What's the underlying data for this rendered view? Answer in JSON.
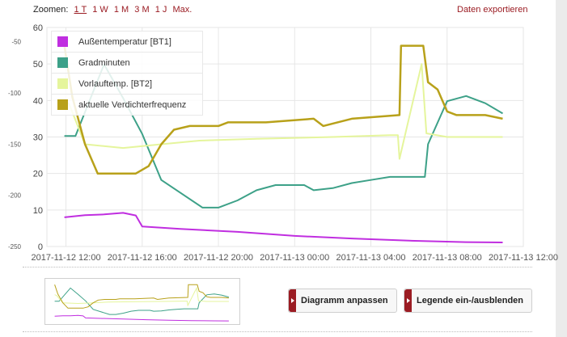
{
  "toolbar": {
    "zoom_label": "Zoomen:",
    "zoom_options": [
      "1 T",
      "1 W",
      "1 M",
      "3 M",
      "1 J",
      "Max."
    ],
    "export_label": "Daten exportieren"
  },
  "buttons": {
    "fit": "Diagramm anpassen",
    "legend_toggle": "Legende ein-/ausblenden"
  },
  "chart_data": {
    "type": "line",
    "x_tick_labels": [
      "2017-11-12 12:00",
      "2017-11-12 16:00",
      "2017-11-12 20:00",
      "2017-11-13 00:00",
      "2017-11-13 04:00",
      "2017-11-13 08:00",
      "2017-11-13 12:00"
    ],
    "y_left_ticks": [
      0,
      10,
      20,
      30,
      40,
      50,
      60
    ],
    "y_right_ticks": [
      -50,
      -100,
      -150,
      -200,
      -250
    ],
    "ylim_left": [
      0,
      60
    ],
    "ylim_right": [
      -250,
      -36
    ],
    "grid": true,
    "legend_position": "top-left",
    "series": [
      {
        "name": "Außentemperatur [BT1]",
        "color": "#c02ee0",
        "axis": "left",
        "x": [
          "2017-11-12 11:55",
          "2017-11-12 13:00",
          "2017-11-12 14:00",
          "2017-11-12 15:00",
          "2017-11-12 15:40",
          "2017-11-12 16:00",
          "2017-11-12 18:00",
          "2017-11-12 21:00",
          "2017-11-13 00:00",
          "2017-11-13 03:00",
          "2017-11-13 06:00",
          "2017-11-13 09:00",
          "2017-11-13 10:55"
        ],
        "y": [
          8.0,
          8.6,
          8.8,
          9.2,
          8.5,
          5.5,
          4.8,
          4.0,
          2.9,
          2.2,
          1.6,
          1.2,
          1.1
        ]
      },
      {
        "name": "Gradminuten",
        "color": "#3da188",
        "axis": "right",
        "x": [
          "2017-11-12 11:55",
          "2017-11-12 12:30",
          "2017-11-12 14:00",
          "2017-11-12 15:00",
          "2017-11-12 16:00",
          "2017-11-12 17:00",
          "2017-11-12 19:10",
          "2017-11-12 20:00",
          "2017-11-12 21:00",
          "2017-11-12 22:00",
          "2017-11-12 23:00",
          "2017-11-13 00:30",
          "2017-11-13 01:00",
          "2017-11-13 02:00",
          "2017-11-13 03:00",
          "2017-11-13 04:00",
          "2017-11-13 05:00",
          "2017-11-13 06:50",
          "2017-11-13 07:00",
          "2017-11-13 08:00",
          "2017-11-13 09:00",
          "2017-11-13 10:00",
          "2017-11-13 10:55"
        ],
        "y": [
          -142,
          -142,
          -72,
          -105,
          -140,
          -185,
          -212,
          -212,
          -205,
          -195,
          -190,
          -190,
          -195,
          -193,
          -188,
          -185,
          -182,
          -182,
          -150,
          -108,
          -103,
          -110,
          -120
        ]
      },
      {
        "name": "Vorlauftemp. [BT2]",
        "color": "#e5f59c",
        "axis": "left",
        "x": [
          "2017-11-12 11:55",
          "2017-11-12 12:10",
          "2017-11-12 13:00",
          "2017-11-12 15:00",
          "2017-11-12 17:00",
          "2017-11-12 19:00",
          "2017-11-12 22:00",
          "2017-11-13 02:00",
          "2017-11-13 05:00",
          "2017-11-13 05:25",
          "2017-11-13 05:30",
          "2017-11-13 06:40",
          "2017-11-13 06:55",
          "2017-11-13 08:00",
          "2017-11-13 10:55"
        ],
        "y": [
          40,
          39,
          28,
          27,
          28,
          29,
          29.5,
          30,
          30.5,
          30.5,
          24,
          50,
          31,
          30,
          30
        ]
      },
      {
        "name": "aktuelle Verdichterfrequenz",
        "color": "#b8a11a",
        "axis": "left",
        "x": [
          "2017-11-12 11:55",
          "2017-11-12 12:20",
          "2017-11-12 13:00",
          "2017-11-12 13:40",
          "2017-11-12 15:40",
          "2017-11-12 16:20",
          "2017-11-12 17:00",
          "2017-11-12 17:40",
          "2017-11-12 18:30",
          "2017-11-12 20:00",
          "2017-11-12 20:30",
          "2017-11-12 22:30",
          "2017-11-13 01:00",
          "2017-11-13 01:30",
          "2017-11-13 03:00",
          "2017-11-13 05:30",
          "2017-11-13 05:35",
          "2017-11-13 06:45",
          "2017-11-13 07:00",
          "2017-11-13 07:30",
          "2017-11-13 08:00",
          "2017-11-13 08:30",
          "2017-11-13 10:00",
          "2017-11-13 10:55"
        ],
        "y": [
          55,
          41,
          28,
          20,
          20,
          22,
          28,
          32,
          33,
          33,
          34,
          34,
          35,
          33,
          35,
          36,
          55,
          55,
          45,
          43,
          37,
          36,
          36,
          35
        ]
      }
    ]
  }
}
